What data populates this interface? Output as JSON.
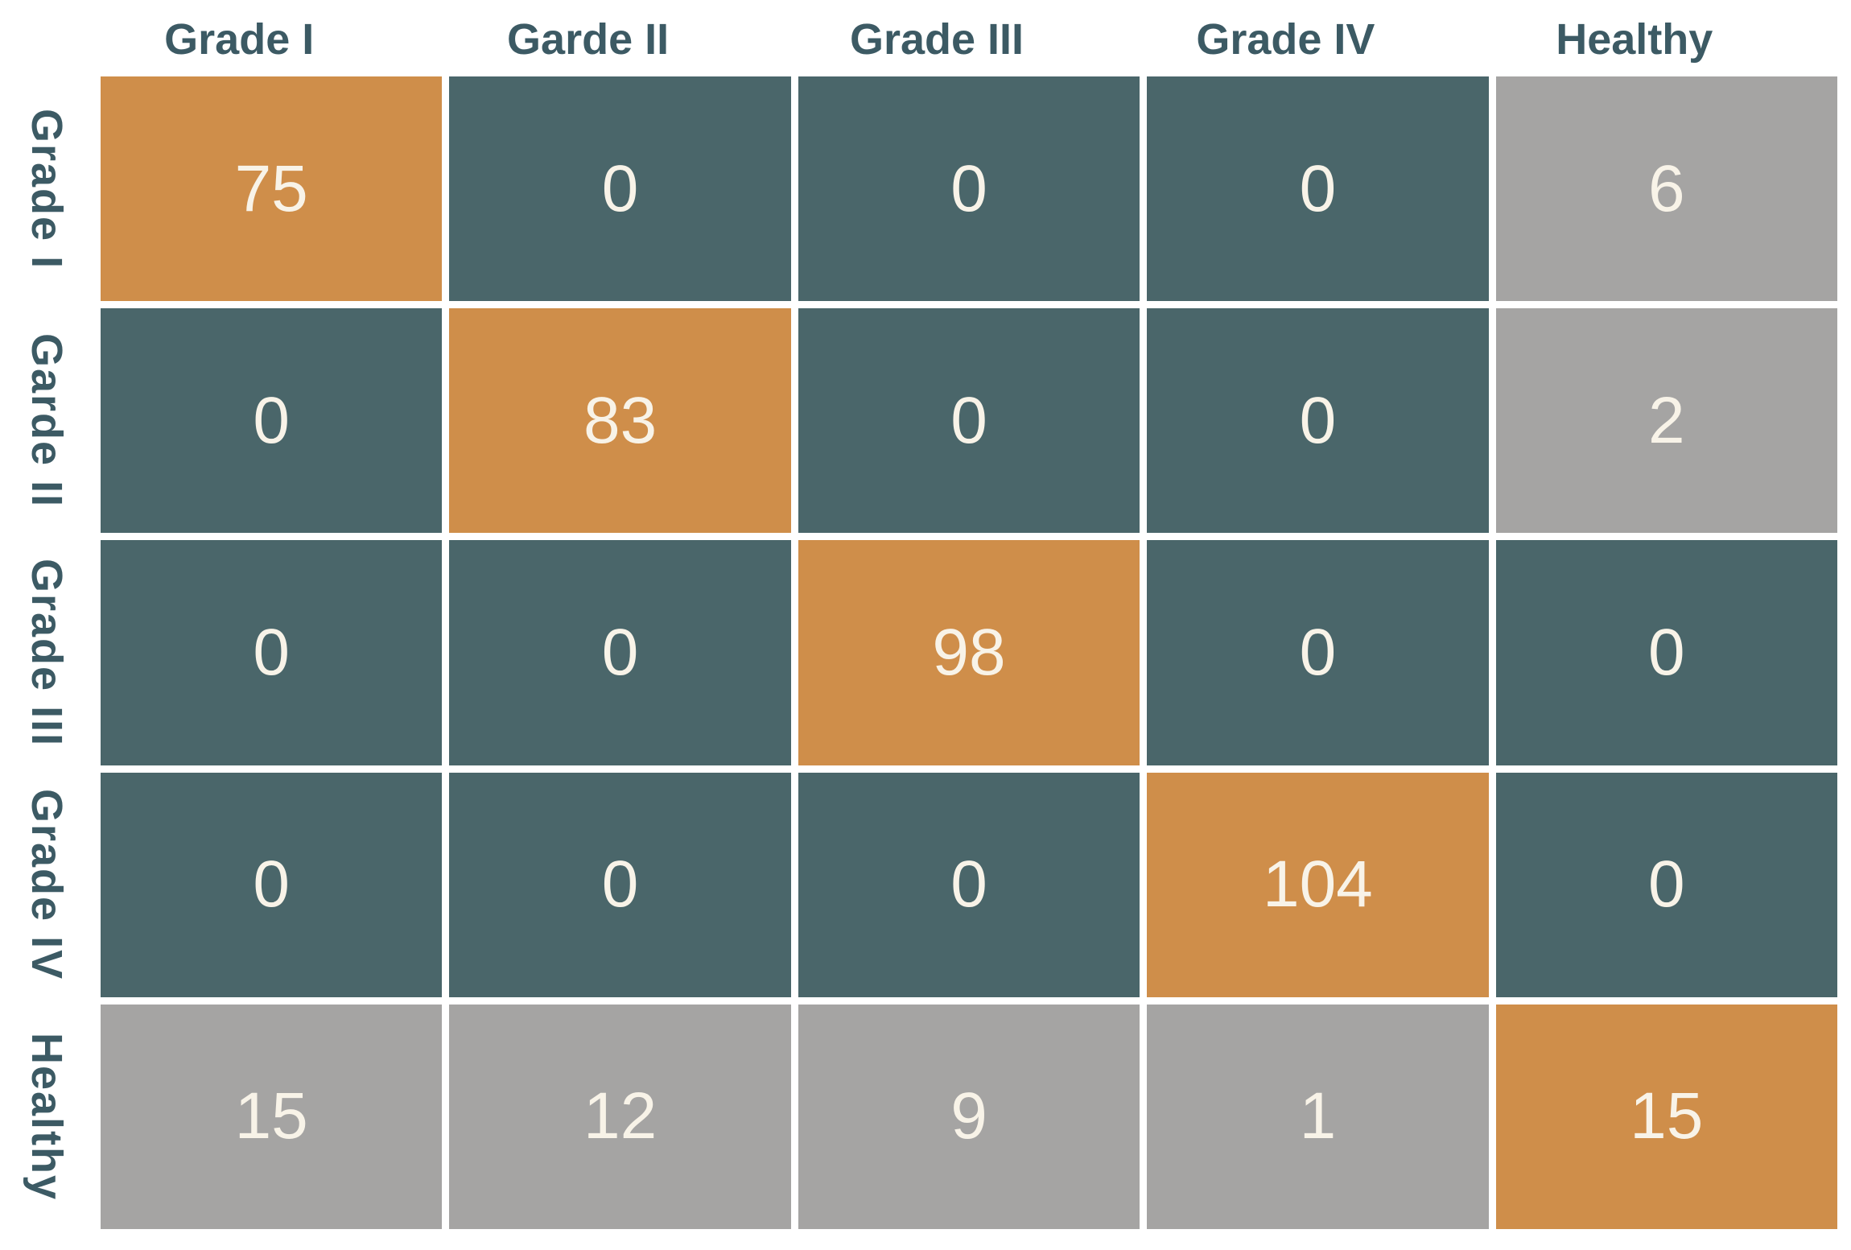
{
  "chart_data": {
    "type": "heatmap",
    "subtype": "confusion-matrix",
    "columns": [
      "Grade I",
      "Garde II",
      "Grade III",
      "Grade IV",
      "Healthy"
    ],
    "rows": [
      "Grade I",
      "Garde II",
      "Grade III",
      "Grade IV",
      "Healthy"
    ],
    "matrix": [
      [
        75,
        0,
        0,
        0,
        6
      ],
      [
        0,
        83,
        0,
        0,
        2
      ],
      [
        0,
        0,
        98,
        0,
        0
      ],
      [
        0,
        0,
        0,
        104,
        0
      ],
      [
        15,
        12,
        9,
        1,
        15
      ]
    ],
    "cell_colors": [
      [
        "diagonal",
        "zero",
        "zero",
        "zero",
        "offdiag"
      ],
      [
        "zero",
        "diagonal",
        "zero",
        "zero",
        "offdiag"
      ],
      [
        "zero",
        "zero",
        "diagonal",
        "zero",
        "zero"
      ],
      [
        "zero",
        "zero",
        "zero",
        "diagonal",
        "zero"
      ],
      [
        "offdiag",
        "offdiag",
        "offdiag",
        "offdiag",
        "diagonal"
      ]
    ],
    "palette": {
      "diagonal": "#cf8e4a",
      "zero": "#4a666a",
      "offdiag": "#a5a4a3",
      "label_text": "#3c5a64",
      "value_text": "#f8f3e8",
      "background": "#ffffff"
    },
    "grid": "white gaps between cells",
    "legend": "none"
  }
}
